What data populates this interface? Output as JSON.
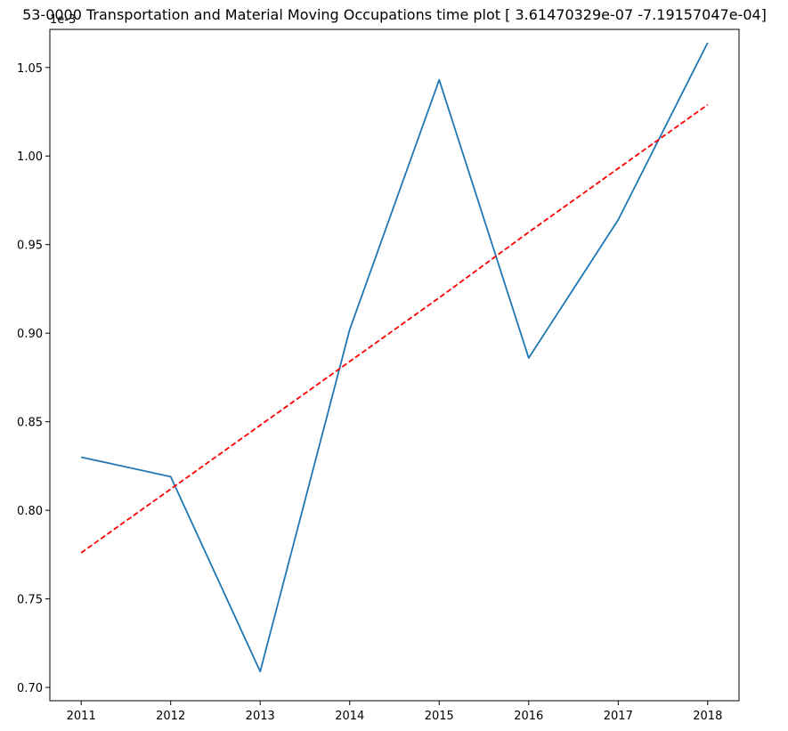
{
  "chart_data": {
    "type": "line",
    "title": "53-0000 Transportation and Material Moving Occupations time plot [ 3.61470329e-07 -7.19157047e-04]",
    "y_offset_label": "1e-3",
    "xlabel": "",
    "ylabel": "",
    "x": [
      2011,
      2012,
      2013,
      2014,
      2015,
      2016,
      2017,
      2018
    ],
    "x_ticks": [
      "2011",
      "2012",
      "2013",
      "2014",
      "2015",
      "2016",
      "2017",
      "2018"
    ],
    "y_ticks": [
      "0.70",
      "0.75",
      "0.80",
      "0.85",
      "0.90",
      "0.95",
      "1.00",
      "1.05"
    ],
    "y_tick_values": [
      0.7,
      0.75,
      0.8,
      0.85,
      0.9,
      0.95,
      1.0,
      1.05
    ],
    "xlim": [
      2010.65,
      2018.35
    ],
    "ylim": [
      0.6925,
      1.0715
    ],
    "grid": false,
    "series": [
      {
        "values": [
          0.83,
          0.819,
          0.709,
          0.902,
          1.043,
          0.886,
          0.964,
          1.064
        ],
        "color": "#1f77b4",
        "style": "solid"
      },
      {
        "values": [
          0.776,
          0.812,
          0.848,
          0.884,
          0.92,
          0.957,
          0.993,
          1.029
        ],
        "color": "#ff0000",
        "style": "dashed"
      }
    ]
  }
}
